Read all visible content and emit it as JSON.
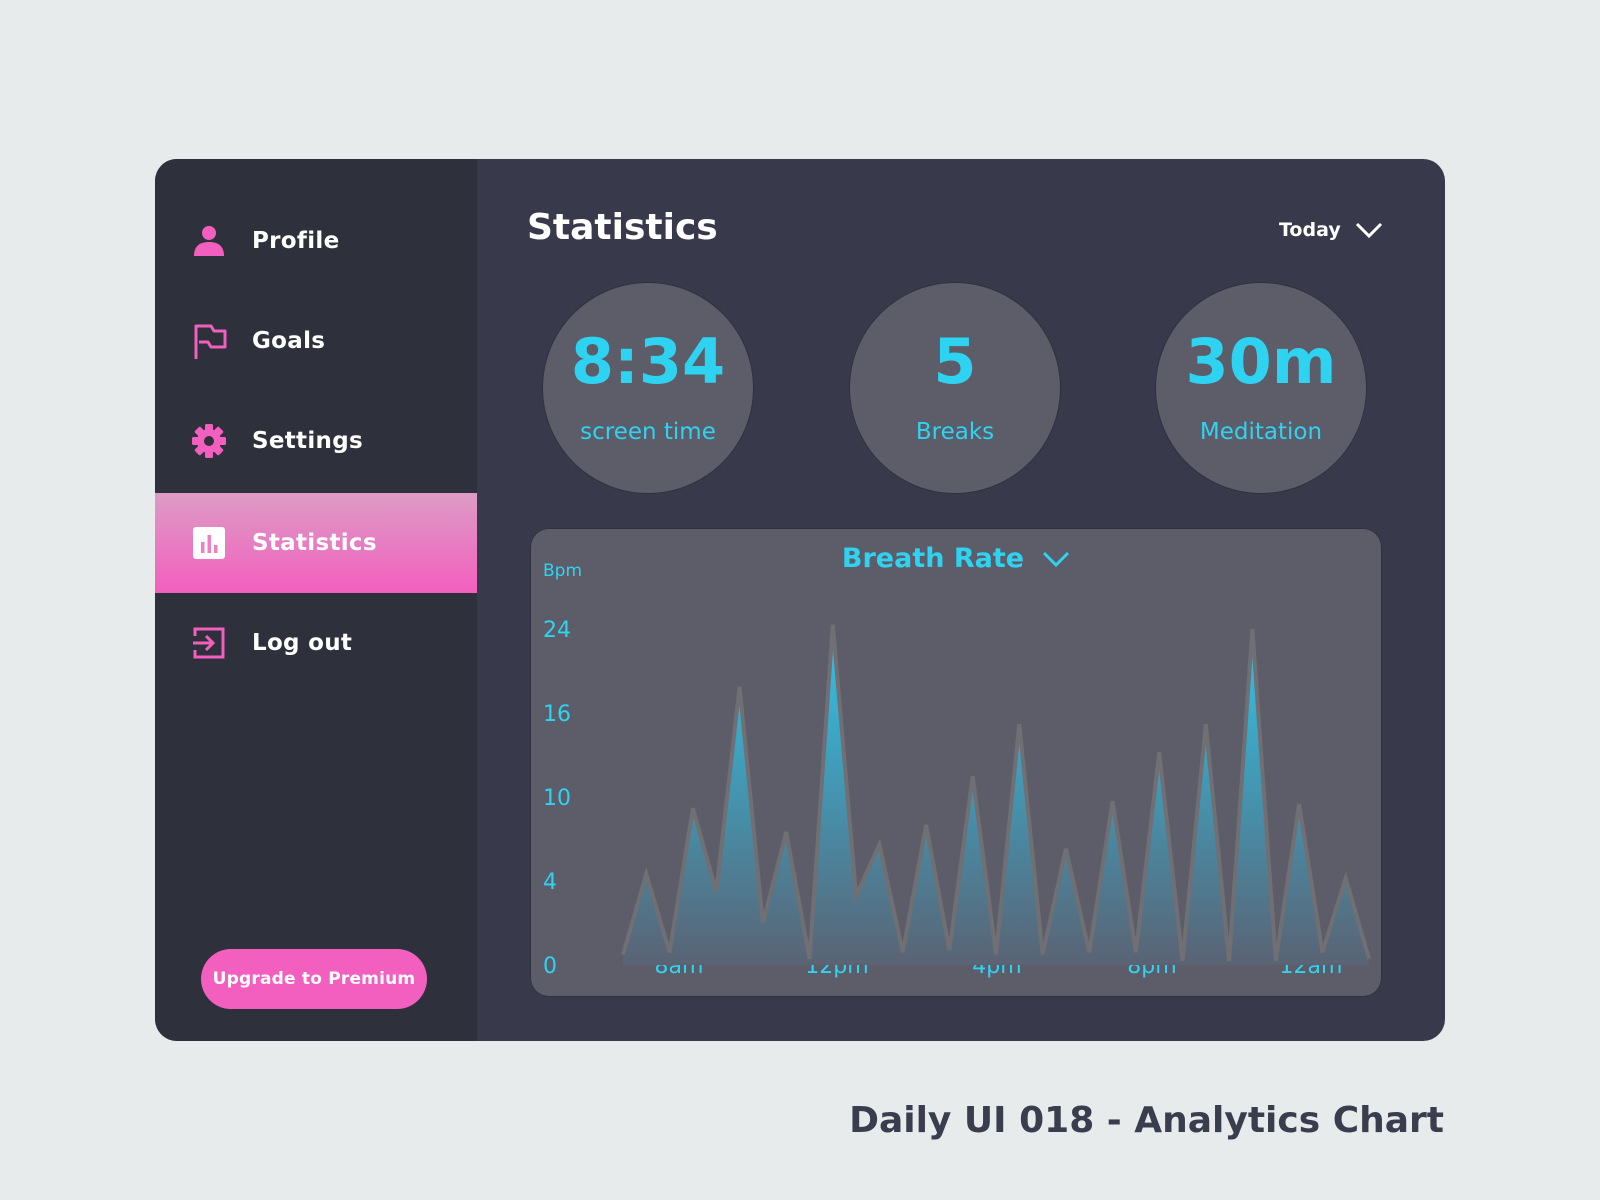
{
  "sidebar": {
    "items": [
      {
        "label": "Profile",
        "icon": "user-icon",
        "active": false
      },
      {
        "label": "Goals",
        "icon": "flag-icon",
        "active": false
      },
      {
        "label": "Settings",
        "icon": "gear-icon",
        "active": false
      },
      {
        "label": "Statistics",
        "icon": "bar-chart-icon",
        "active": true
      },
      {
        "label": "Log out",
        "icon": "logout-icon",
        "active": false
      }
    ],
    "upgrade_label": "Upgrade to Premium"
  },
  "header": {
    "title": "Statistics",
    "period": "Today"
  },
  "stats": [
    {
      "value": "8:34",
      "caption": "screen time"
    },
    {
      "value": "5",
      "caption": "Breaks"
    },
    {
      "value": "30m",
      "caption": "Meditation"
    }
  ],
  "colors": {
    "accent_pink": "#f35fbe",
    "accent_cyan": "#2fd3f2",
    "sidebar_bg": "#2e303b",
    "main_bg": "#383a4b",
    "card_bg": "#5c5d69"
  },
  "chart_data": {
    "type": "area",
    "title": "Breath Rate",
    "ylabel": "Bpm",
    "y_ticks": [
      "0",
      "4",
      "10",
      "16",
      "24"
    ],
    "x_ticks": [
      "8am",
      "12pm",
      "4pm",
      "8pm",
      "12am"
    ],
    "series": [
      {
        "values": [
          0.5,
          4.5,
          0.6,
          9.2,
          3.5,
          18.5,
          2,
          7.5,
          0.3,
          24.4,
          3.3,
          6.6,
          0.6,
          8,
          0.7,
          11.5,
          0.5,
          15.2,
          0.5,
          6.3,
          0.6,
          9.7,
          0.6,
          13.2,
          0.2,
          15.2,
          0.2,
          24,
          0.2,
          9.5,
          0.6,
          4.2,
          0.3
        ]
      }
    ]
  },
  "footer": {
    "caption": "Daily UI 018 - Analytics Chart"
  }
}
